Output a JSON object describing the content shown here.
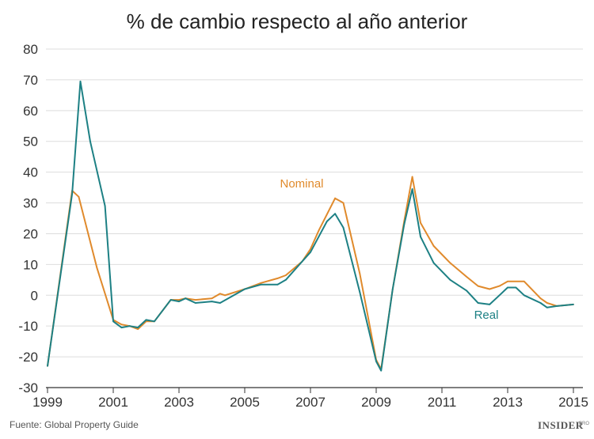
{
  "chart_data": {
    "type": "line",
    "title": "% de cambio respecto al año anterior",
    "xlabel": "",
    "ylabel": "",
    "xlim": [
      1999,
      2015.2
    ],
    "ylim": [
      -30,
      80
    ],
    "yticks": [
      80,
      70,
      60,
      50,
      40,
      30,
      20,
      10,
      0,
      -10,
      -20,
      -30
    ],
    "xticks": [
      "1999",
      "2001",
      "2003",
      "2005",
      "2007",
      "2009",
      "2011",
      "2013",
      "2015"
    ],
    "grid": true,
    "series": [
      {
        "name": "Nominal",
        "color": "#e08a2c",
        "points": [
          [
            1999,
            -23
          ],
          [
            1999.75,
            34
          ],
          [
            1999.95,
            32
          ],
          [
            2000.5,
            9
          ],
          [
            2001,
            -8
          ],
          [
            2001.25,
            -9.5
          ],
          [
            2001.5,
            -10
          ],
          [
            2001.75,
            -11
          ],
          [
            2002,
            -8.5
          ],
          [
            2002.25,
            -8.5
          ],
          [
            2002.75,
            -1.5
          ],
          [
            2003,
            -1.5
          ],
          [
            2003.2,
            -1
          ],
          [
            2003.5,
            -1.5
          ],
          [
            2004,
            -1
          ],
          [
            2004.25,
            0.5
          ],
          [
            2004.4,
            0
          ],
          [
            2005,
            2
          ],
          [
            2005.5,
            4
          ],
          [
            2006,
            5.5
          ],
          [
            2006.25,
            6.5
          ],
          [
            2006.75,
            11
          ],
          [
            2007,
            15
          ],
          [
            2007.25,
            21
          ],
          [
            2007.75,
            31.5
          ],
          [
            2008,
            30
          ],
          [
            2008.5,
            7
          ],
          [
            2009,
            -21
          ],
          [
            2009.15,
            -24
          ],
          [
            2009.5,
            2
          ],
          [
            2009.85,
            24
          ],
          [
            2010.1,
            38.5
          ],
          [
            2010.35,
            23.5
          ],
          [
            2010.75,
            16
          ],
          [
            2011.25,
            10.5
          ],
          [
            2011.75,
            6
          ],
          [
            2012.1,
            3
          ],
          [
            2012.45,
            2
          ],
          [
            2012.75,
            3
          ],
          [
            2013,
            4.5
          ],
          [
            2013.5,
            4.5
          ],
          [
            2014,
            -1
          ],
          [
            2014.2,
            -2.5
          ],
          [
            2014.5,
            -3.5
          ],
          [
            2015,
            -3
          ]
        ]
      },
      {
        "name": "Real",
        "color": "#1d8084",
        "points": [
          [
            1999,
            -23
          ],
          [
            1999.75,
            33
          ],
          [
            2000,
            69.5
          ],
          [
            2000.3,
            50
          ],
          [
            2000.75,
            29
          ],
          [
            2001,
            -8.5
          ],
          [
            2001.25,
            -10.5
          ],
          [
            2001.5,
            -10
          ],
          [
            2001.75,
            -10.5
          ],
          [
            2002,
            -8
          ],
          [
            2002.25,
            -8.5
          ],
          [
            2002.75,
            -1.5
          ],
          [
            2003,
            -2
          ],
          [
            2003.2,
            -1
          ],
          [
            2003.5,
            -2.5
          ],
          [
            2004,
            -2
          ],
          [
            2004.25,
            -2.5
          ],
          [
            2005,
            2
          ],
          [
            2005.5,
            3.5
          ],
          [
            2006,
            3.5
          ],
          [
            2006.25,
            5
          ],
          [
            2006.75,
            11
          ],
          [
            2007,
            14
          ],
          [
            2007.25,
            19
          ],
          [
            2007.5,
            24
          ],
          [
            2007.75,
            26.5
          ],
          [
            2008,
            22
          ],
          [
            2008.5,
            1
          ],
          [
            2009,
            -21.5
          ],
          [
            2009.15,
            -24.5
          ],
          [
            2009.5,
            2
          ],
          [
            2009.85,
            23
          ],
          [
            2010.1,
            34.5
          ],
          [
            2010.35,
            19
          ],
          [
            2010.75,
            10.5
          ],
          [
            2011.25,
            5
          ],
          [
            2011.75,
            1.5
          ],
          [
            2012.1,
            -2.5
          ],
          [
            2012.45,
            -3
          ],
          [
            2012.75,
            0
          ],
          [
            2013,
            2.5
          ],
          [
            2013.25,
            2.5
          ],
          [
            2013.5,
            0
          ],
          [
            2014,
            -2.5
          ],
          [
            2014.2,
            -4
          ],
          [
            2014.5,
            -3.5
          ],
          [
            2015,
            -3
          ]
        ]
      }
    ]
  },
  "source": "Fuente: Global Property Guide",
  "brand": "INSIDER",
  "brand_suffix": "PRO"
}
